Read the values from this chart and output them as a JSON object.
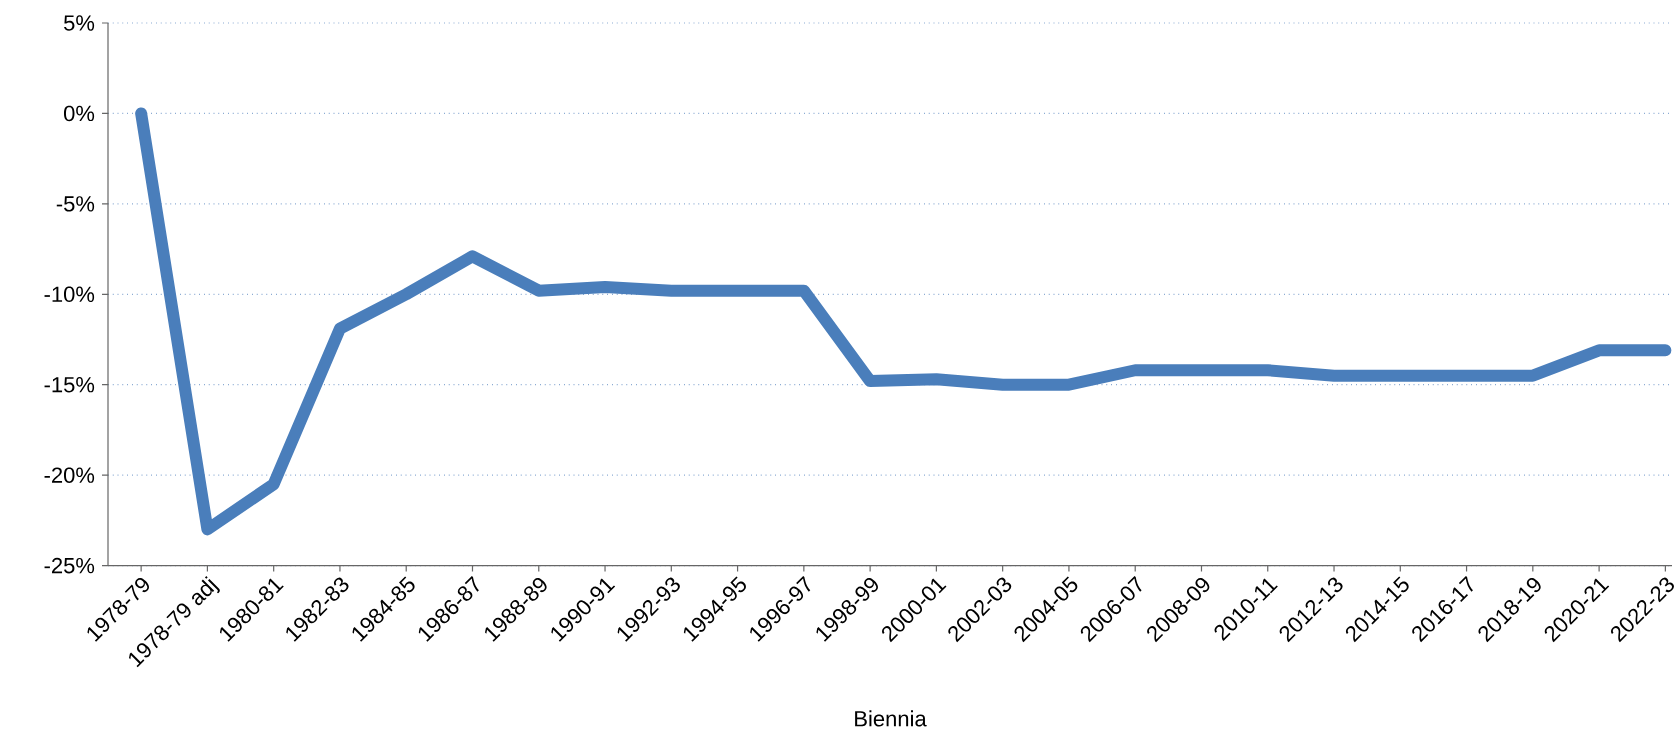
{
  "chart_data": {
    "type": "line",
    "xlabel": "Biennia",
    "categories": [
      "1978-79",
      "1978-79 adj",
      "1980-81",
      "1982-83",
      "1984-85",
      "1986-87",
      "1988-89",
      "1990-91",
      "1992-93",
      "1994-95",
      "1996-97",
      "1998-99",
      "2000-01",
      "2002-03",
      "2004-05",
      "2006-07",
      "2008-09",
      "2010-11",
      "2012-13",
      "2014-15",
      "2016-17",
      "2018-19",
      "2020-21",
      "2022-23"
    ],
    "values": [
      0,
      -23,
      -20.5,
      -11.9,
      -10,
      -7.9,
      -9.8,
      -9.6,
      -9.8,
      -9.8,
      -9.8,
      -14.8,
      -14.7,
      -15,
      -15,
      -14.2,
      -14.2,
      -14.2,
      -14.5,
      -14.5,
      -14.5,
      -14.5,
      -13.1,
      -13.1
    ],
    "color": "#4a7ebb",
    "ylim": [
      -25,
      5
    ],
    "yticks": [
      {
        "value": -25,
        "label": "-25%"
      },
      {
        "value": -20,
        "label": "-20%"
      },
      {
        "value": -15,
        "label": "-15%"
      },
      {
        "value": -10,
        "label": "-10%"
      },
      {
        "value": -5,
        "label": "-5%"
      },
      {
        "value": 0,
        "label": "0%"
      },
      {
        "value": 5,
        "label": "5%"
      }
    ],
    "grid": "y",
    "marker": "none",
    "line_style": "solid"
  }
}
